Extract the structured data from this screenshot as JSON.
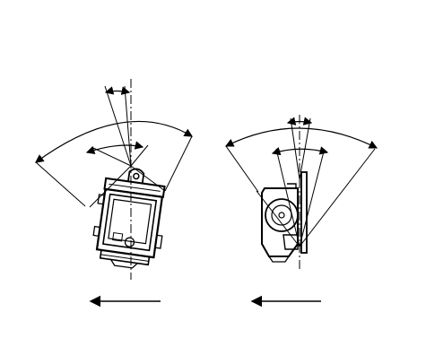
{
  "diagram": {
    "line_color": "#000000",
    "background_color": "#ffffff",
    "views": [
      {
        "name": "front-view",
        "description_icon": "switch-front-icon",
        "motion": "arrow-left"
      },
      {
        "name": "side-view",
        "description_icon": "switch-side-icon",
        "motion": "arrow-left"
      }
    ]
  }
}
